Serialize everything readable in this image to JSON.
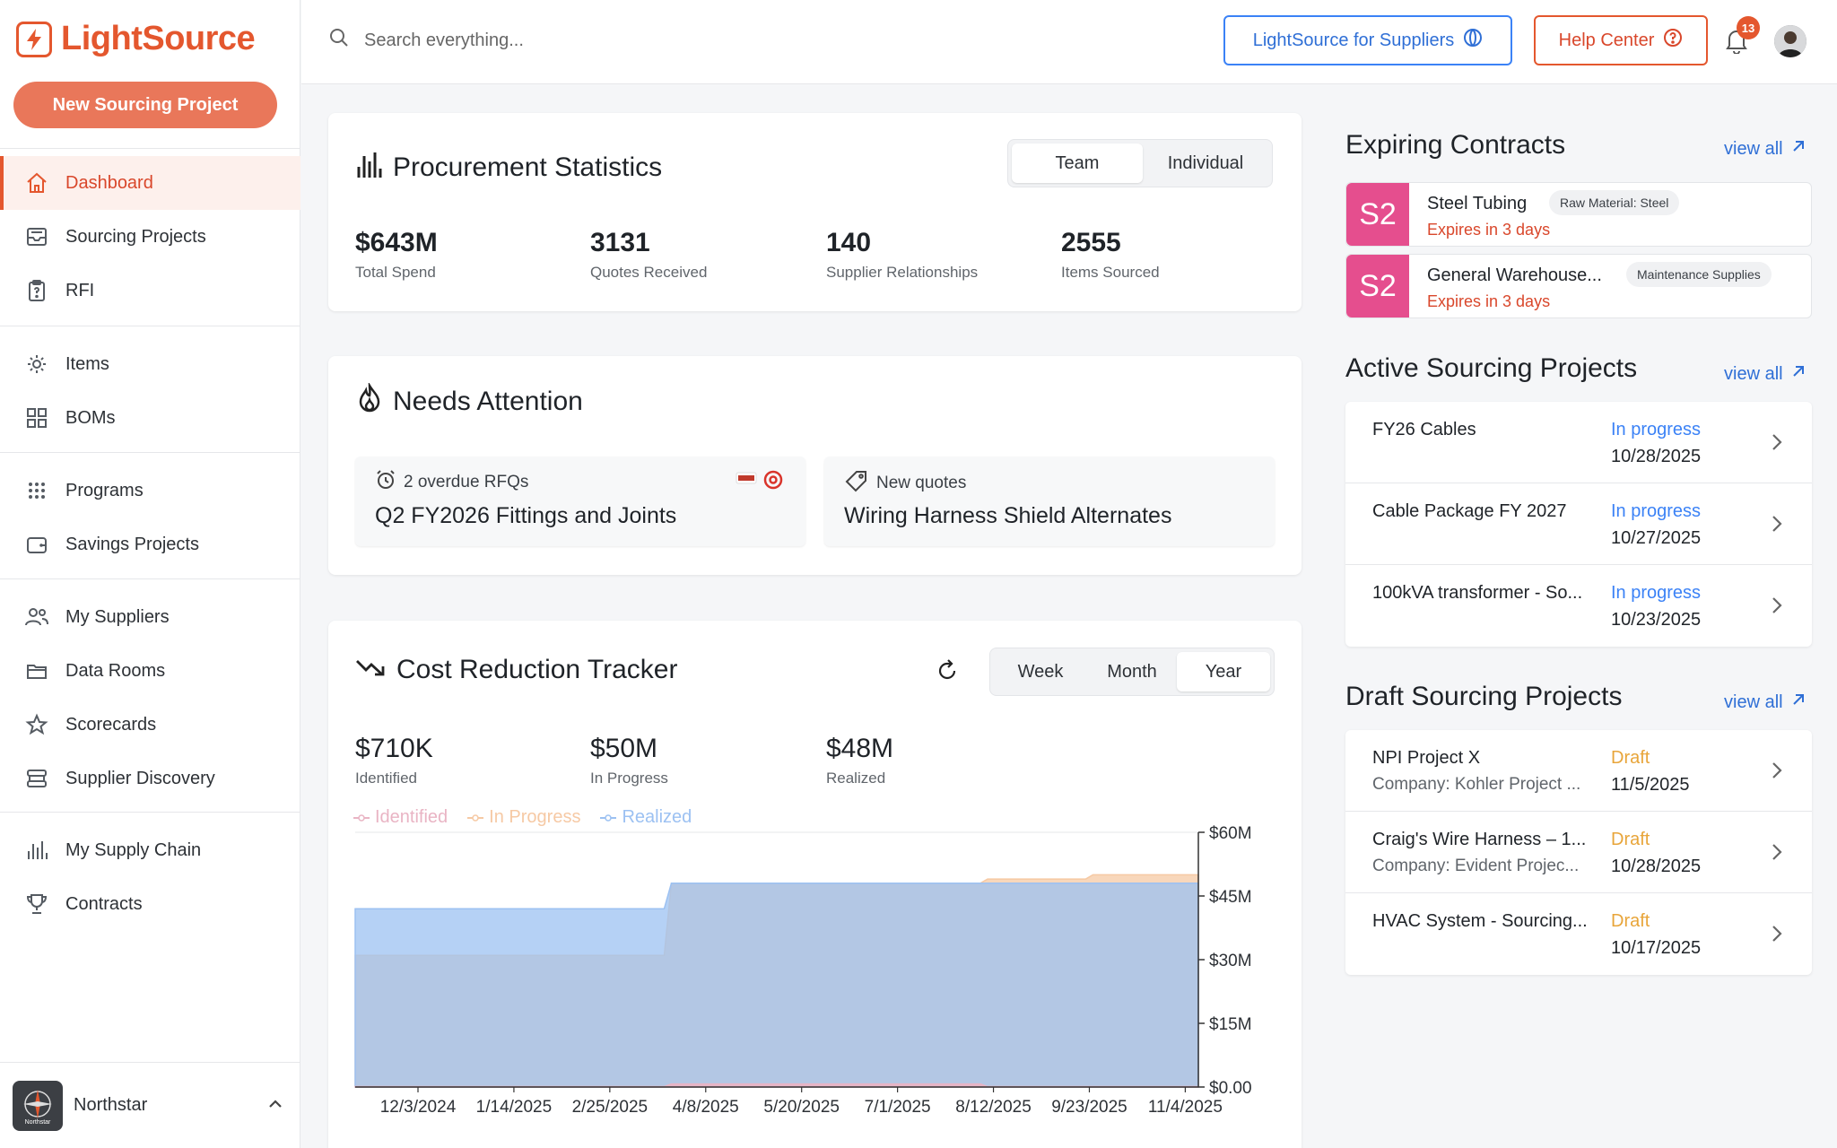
{
  "app": {
    "name": "LightSource",
    "new_project_label": "New Sourcing Project"
  },
  "sidebar": {
    "groups": [
      [
        {
          "label": "Dashboard",
          "icon": "home-icon",
          "active": true
        },
        {
          "label": "Sourcing Projects",
          "icon": "tray-icon"
        },
        {
          "label": "RFI",
          "icon": "clipboard-question-icon"
        }
      ],
      [
        {
          "label": "Items",
          "icon": "gear-icon"
        },
        {
          "label": "BOMs",
          "icon": "grid-icon"
        }
      ],
      [
        {
          "label": "Programs",
          "icon": "dots-grid-icon"
        },
        {
          "label": "Savings Projects",
          "icon": "wallet-icon"
        }
      ],
      [
        {
          "label": "My Suppliers",
          "icon": "users-icon"
        },
        {
          "label": "Data Rooms",
          "icon": "folder-icon"
        },
        {
          "label": "Scorecards",
          "icon": "star-icon"
        },
        {
          "label": "Supplier Discovery",
          "icon": "stack-icon"
        }
      ],
      [
        {
          "label": "My Supply Chain",
          "icon": "bar-chart-icon"
        },
        {
          "label": "Contracts",
          "icon": "trophy-icon"
        }
      ]
    ],
    "org": {
      "name": "Northstar",
      "logo_text": "Northstar"
    }
  },
  "topbar": {
    "search_placeholder": "Search everything...",
    "suppliers_label": "LightSource for Suppliers",
    "help_label": "Help Center",
    "notification_count": "13"
  },
  "procurement": {
    "title": "Procurement Statistics",
    "toggle": [
      "Team",
      "Individual"
    ],
    "toggle_selected": "Team",
    "stats": [
      {
        "value": "$643M",
        "label": "Total Spend"
      },
      {
        "value": "3131",
        "label": "Quotes Received"
      },
      {
        "value": "140",
        "label": "Supplier Relationships"
      },
      {
        "value": "2555",
        "label": "Items Sourced"
      }
    ]
  },
  "attention": {
    "title": "Needs Attention",
    "items": [
      {
        "head": "2 overdue RFQs",
        "title": "Q2 FY2026 Fittings and Joints",
        "icon": "alarm-clock-icon"
      },
      {
        "head": "New quotes",
        "title": "Wiring Harness Shield Alternates",
        "icon": "tag-icon"
      }
    ]
  },
  "cost": {
    "title": "Cost Reduction Tracker",
    "range": [
      "Week",
      "Month",
      "Year"
    ],
    "range_selected": "Year",
    "stats": [
      {
        "value": "$710K",
        "label": "Identified"
      },
      {
        "value": "$50M",
        "label": "In Progress"
      },
      {
        "value": "$48M",
        "label": "Realized"
      }
    ]
  },
  "chart_data": {
    "type": "area",
    "x": [
      "12/3/2024",
      "1/14/2025",
      "2/25/2025",
      "4/8/2025",
      "5/20/2025",
      "7/1/2025",
      "8/12/2025",
      "9/23/2025",
      "11/4/2025"
    ],
    "series": [
      {
        "name": "Identified",
        "color": "#e9b4c4",
        "values": [
          0.1,
          0.1,
          0.1,
          0.7,
          0.7,
          0.7,
          0.1,
          0.1,
          0.1
        ]
      },
      {
        "name": "In Progress",
        "color": "#f6c9a4",
        "values": [
          31,
          31,
          31,
          48,
          48,
          48,
          49,
          50,
          50
        ]
      },
      {
        "name": "Realized",
        "color": "#9cc1f2",
        "values": [
          42,
          42,
          42,
          48,
          48,
          48,
          48,
          48,
          48
        ]
      }
    ],
    "y_ticks": [
      "$60M",
      "$45M",
      "$30M",
      "$15M",
      "$0.00"
    ],
    "ylim": [
      0,
      60
    ],
    "legend": "top-left",
    "grid": false
  },
  "expiring": {
    "title": "Expiring Contracts",
    "view_all": "view all",
    "items": [
      {
        "badge": "S2",
        "name": "Steel Tubing",
        "tag": "Raw Material: Steel",
        "expires": "Expires in 3 days"
      },
      {
        "badge": "S2",
        "name": "General Warehouse...",
        "tag": "Maintenance Supplies",
        "expires": "Expires in 3 days"
      }
    ]
  },
  "active": {
    "title": "Active Sourcing Projects",
    "view_all": "view all",
    "items": [
      {
        "name": "FY26 Cables",
        "status": "In progress",
        "date": "10/28/2025"
      },
      {
        "name": "Cable Package FY 2027",
        "status": "In progress",
        "date": "10/27/2025"
      },
      {
        "name": "100kVA transformer - So...",
        "status": "In progress",
        "date": "10/23/2025"
      }
    ]
  },
  "draft": {
    "title": "Draft Sourcing Projects",
    "view_all": "view all",
    "items": [
      {
        "name": "NPI Project X",
        "sub": "Company: Kohler Project ...",
        "status": "Draft",
        "date": "11/5/2025"
      },
      {
        "name": "Craig's Wire Harness – 1...",
        "sub": "Company: Evident Projec...",
        "status": "Draft",
        "date": "10/28/2025"
      },
      {
        "name": "HVAC System - Sourcing...",
        "sub": "",
        "status": "Draft",
        "date": "10/17/2025"
      }
    ]
  }
}
